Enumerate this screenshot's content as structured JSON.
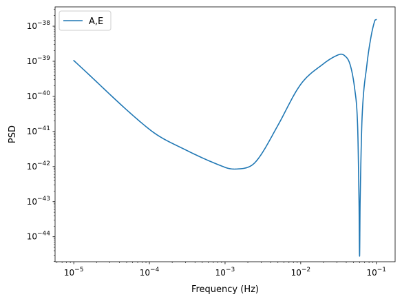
{
  "chart_data": {
    "type": "line",
    "title": "",
    "xlabel": "Frequency (Hz)",
    "ylabel": "PSD",
    "xscale": "log",
    "yscale": "log",
    "xlim": [
      5.66e-06,
      0.177
    ],
    "ylim": [
      1.94e-45,
      3.55e-38
    ],
    "grid": false,
    "legend": {
      "placement": "top-left",
      "entries": [
        "A,E"
      ]
    },
    "x_ticks": [
      {
        "value": 1e-05,
        "label": "10",
        "exp": "−5"
      },
      {
        "value": 0.0001,
        "label": "10",
        "exp": "−4"
      },
      {
        "value": 0.001,
        "label": "10",
        "exp": "−3"
      },
      {
        "value": 0.01,
        "label": "10",
        "exp": "−2"
      },
      {
        "value": 0.1,
        "label": "10",
        "exp": "−1"
      }
    ],
    "y_ticks": [
      {
        "value": 1e-44,
        "label": "10",
        "exp": "−44"
      },
      {
        "value": 1e-43,
        "label": "10",
        "exp": "−43"
      },
      {
        "value": 1e-42,
        "label": "10",
        "exp": "−42"
      },
      {
        "value": 1e-41,
        "label": "10",
        "exp": "−41"
      },
      {
        "value": 1e-40,
        "label": "10",
        "exp": "−40"
      },
      {
        "value": 1e-39,
        "label": "10",
        "exp": "−39"
      },
      {
        "value": 1e-38,
        "label": "10",
        "exp": "−38"
      }
    ],
    "series": [
      {
        "name": "A,E",
        "color": "#1f77b4",
        "x": [
          1e-05,
          0.0001,
          0.0003,
          0.001,
          0.0014,
          0.0022,
          0.003,
          0.005,
          0.01,
          0.02,
          0.032,
          0.038,
          0.045,
          0.052,
          0.0565,
          0.059,
          0.06,
          0.061,
          0.065,
          0.075,
          0.085,
          0.095,
          0.1
        ],
        "y": [
          1.05e-39,
          1.15e-41,
          3e-42,
          9.5e-43,
          8.5e-43,
          1.05e-42,
          2.2e-42,
          1.5e-41,
          2.2e-40,
          8.5e-40,
          1.55e-39,
          1.45e-39,
          8e-40,
          1.5e-40,
          1.5e-41,
          1e-43,
          2.8e-45,
          1e-43,
          3e-41,
          8e-40,
          5e-39,
          1.4e-38,
          1.55e-38
        ]
      }
    ]
  }
}
